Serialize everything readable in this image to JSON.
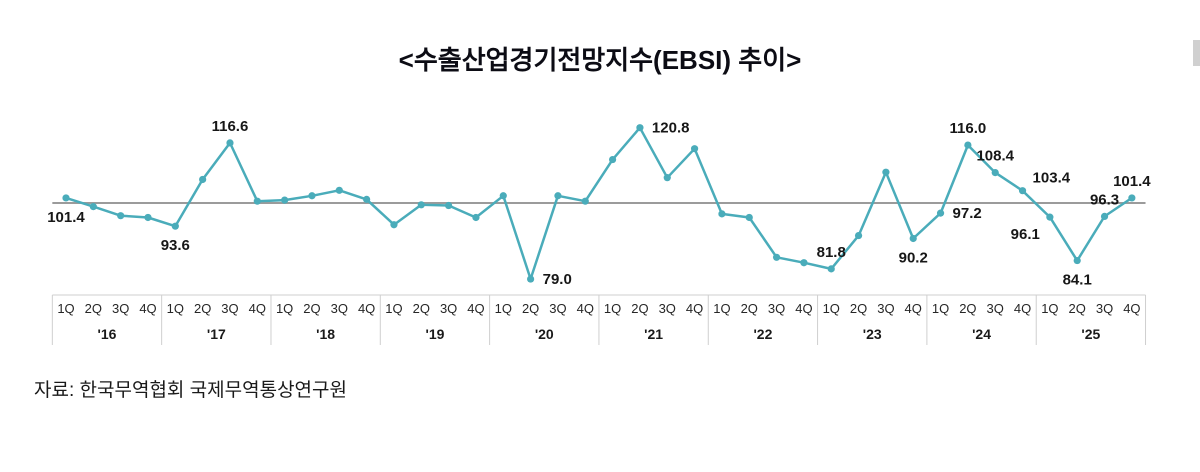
{
  "source": "자료: 한국무역협회 국제무역통상연구원",
  "chart_data": {
    "type": "line",
    "title": "<수출산업경기전망지수(EBSI) 추이>",
    "series_name": "EBSI",
    "x_years": [
      "'16",
      "'17",
      "'18",
      "'19",
      "'20",
      "'21",
      "'22",
      "'23",
      "'24",
      "'25"
    ],
    "quarters": [
      "1Q",
      "2Q",
      "3Q",
      "4Q"
    ],
    "values": [
      101.4,
      99.0,
      96.5,
      96.0,
      93.6,
      106.5,
      116.6,
      100.5,
      100.8,
      102.0,
      103.5,
      101.0,
      94.0,
      99.5,
      99.3,
      96.0,
      102.0,
      79.0,
      102.0,
      100.5,
      112.0,
      120.8,
      107.0,
      115.0,
      97.0,
      96.0,
      85.0,
      83.5,
      81.8,
      91.0,
      108.5,
      90.2,
      97.2,
      116.0,
      108.4,
      103.4,
      96.1,
      84.1,
      96.3,
      101.4
    ],
    "reference_line": 100,
    "ylim": [
      72,
      128
    ],
    "grid": "off",
    "legend": "none",
    "labeled_points": [
      {
        "index": 0,
        "label": "101.4",
        "pos": "below"
      },
      {
        "index": 4,
        "label": "93.6",
        "pos": "below"
      },
      {
        "index": 6,
        "label": "116.6",
        "pos": "above"
      },
      {
        "index": 17,
        "label": "79.0",
        "pos": "right"
      },
      {
        "index": 21,
        "label": "120.8",
        "pos": "right"
      },
      {
        "index": 28,
        "label": "81.8",
        "pos": "above"
      },
      {
        "index": 31,
        "label": "90.2",
        "pos": "below"
      },
      {
        "index": 32,
        "label": "97.2",
        "pos": "right"
      },
      {
        "index": 33,
        "label": "116.0",
        "pos": "above"
      },
      {
        "index": 34,
        "label": "108.4",
        "pos": "above"
      },
      {
        "index": 35,
        "label": "103.4",
        "pos": "above-right"
      },
      {
        "index": 36,
        "label": "96.1",
        "pos": "below-left"
      },
      {
        "index": 37,
        "label": "84.1",
        "pos": "below"
      },
      {
        "index": 38,
        "label": "96.3",
        "pos": "above"
      },
      {
        "index": 39,
        "label": "101.4",
        "pos": "above"
      }
    ],
    "line_color": "#4aacba",
    "marker_color": "#4aacba",
    "reference_color": "#9b9b9b",
    "axis_color": "#cfcfcf",
    "label_color": "#171717"
  }
}
